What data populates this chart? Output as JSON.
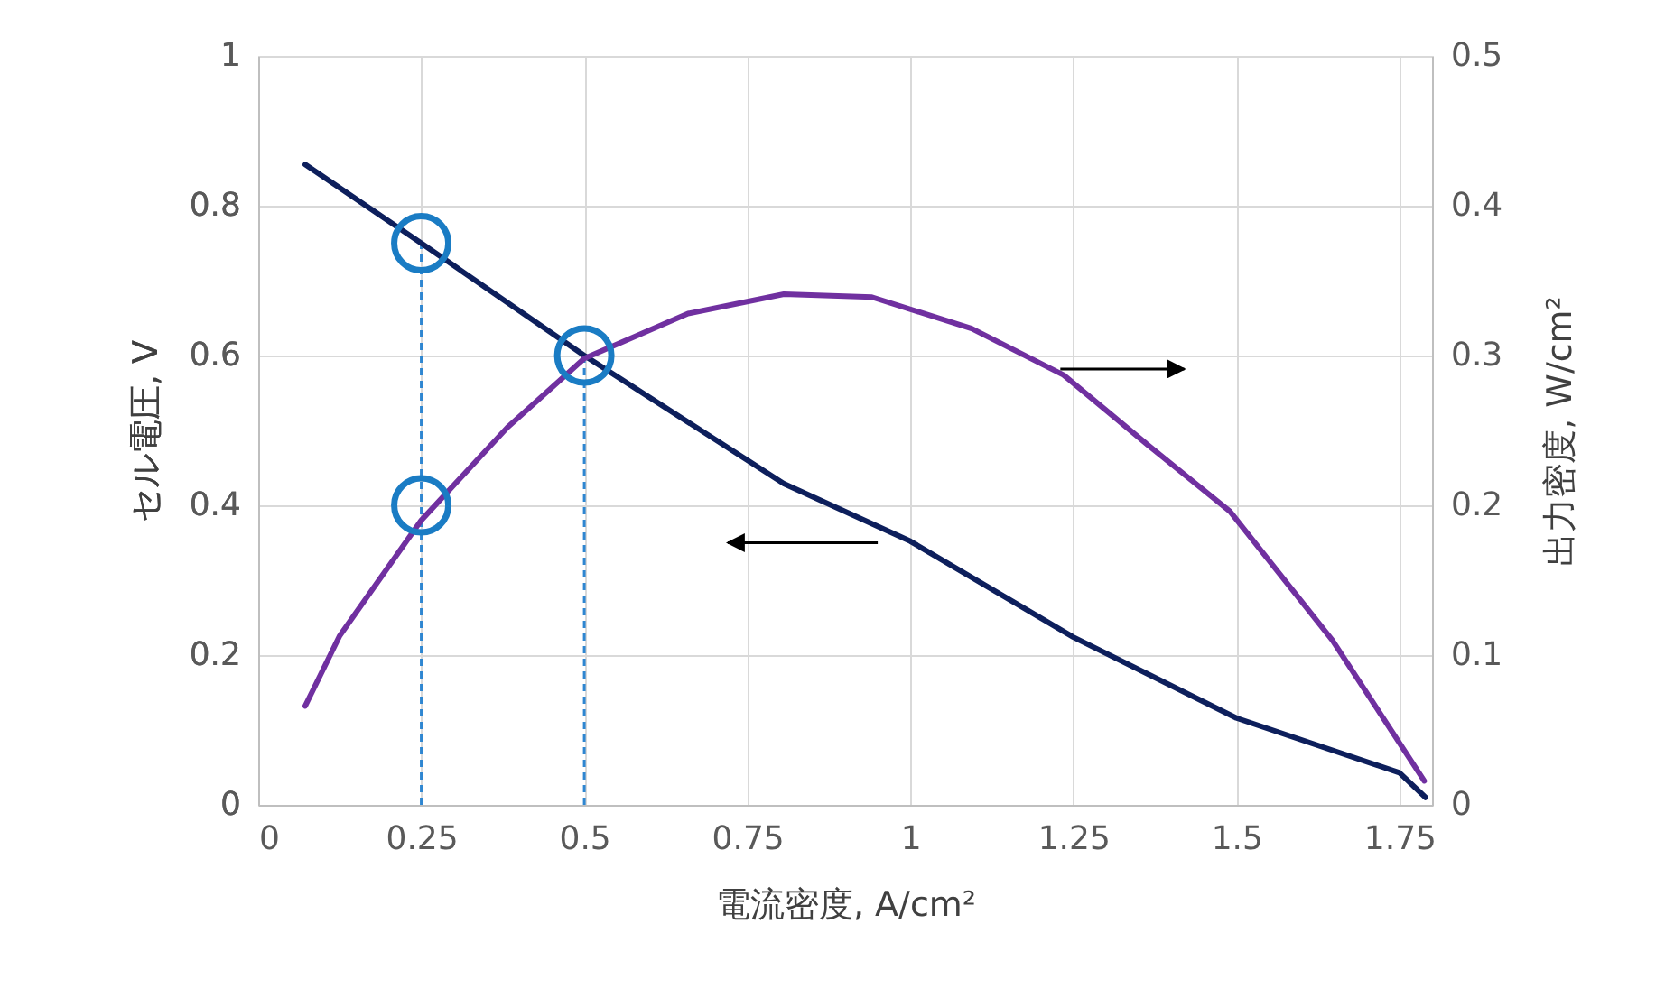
{
  "chart_data": {
    "type": "line",
    "xlabel": "電流密度, A/cm²",
    "ylabel": "セル電圧, V",
    "y2label": "出力密度, W/cm²",
    "xlim": [
      0,
      1.8
    ],
    "xticks": [
      0,
      0.25,
      0.5,
      0.75,
      1,
      1.25,
      1.5,
      1.75
    ],
    "ylim": [
      0,
      1
    ],
    "yticks": [
      0,
      0.2,
      0.4,
      0.6,
      0.8,
      1
    ],
    "y2lim": [
      0,
      0.5
    ],
    "y2ticks": [
      0,
      0.1,
      0.2,
      0.3,
      0.4,
      0.5
    ],
    "grid": true,
    "series": [
      {
        "color": "#0d1f5c",
        "x": [
          0.072,
          0.25,
          0.5,
          0.806,
          1.0,
          1.25,
          1.5,
          1.75,
          1.79
        ],
        "values": [
          0.855,
          0.75,
          0.6,
          0.429,
          0.352,
          0.224,
          0.116,
          0.043,
          0.01
        ]
      },
      {
        "axis": "y2",
        "color": "#7030a0",
        "x": [
          0.072,
          0.125,
          0.25,
          0.382,
          0.5,
          0.659,
          0.806,
          0.941,
          1.094,
          1.235,
          1.365,
          1.49,
          1.647,
          1.788
        ],
        "values": [
          0.066,
          0.113,
          0.19,
          0.252,
          0.298,
          0.328,
          0.341,
          0.339,
          0.318,
          0.287,
          0.24,
          0.196,
          0.11,
          0.016
        ]
      },
      {
        "type": "scatter",
        "marker": "circle",
        "color": "#1a7cc4",
        "x": [
          0.25,
          0.25,
          0.5
        ],
        "values": [
          0.75,
          0.4,
          0.6
        ]
      }
    ],
    "ref_lines": [
      {
        "axis": "x",
        "value": 0.25,
        "color": "#2e86d1",
        "line_style": "dashed"
      },
      {
        "axis": "x",
        "value": 0.5,
        "color": "#2e86d1",
        "line_style": "dashed"
      }
    ]
  }
}
